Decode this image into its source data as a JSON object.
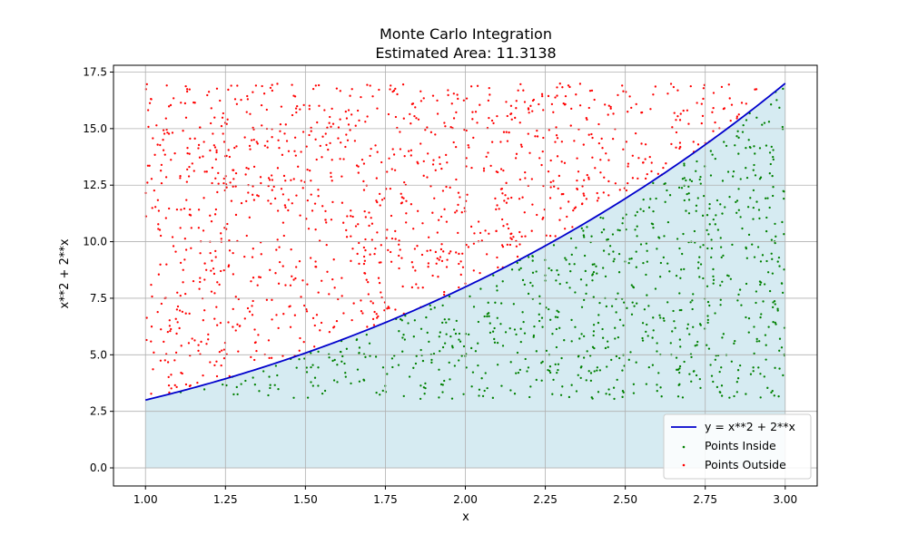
{
  "chart_data": {
    "type": "scatter",
    "title": "Monte Carlo Integration",
    "subtitle": "Estimated Area: 11.3138",
    "xlabel": "x",
    "ylabel": "x**2 + 2**x",
    "xlim": [
      0.9,
      3.1
    ],
    "ylim": [
      -0.8,
      17.8
    ],
    "x_ticks": [
      1.0,
      1.25,
      1.5,
      1.75,
      2.0,
      2.25,
      2.5,
      2.75,
      3.0
    ],
    "x_tick_labels": [
      "1.00",
      "1.25",
      "1.50",
      "1.75",
      "2.00",
      "2.25",
      "2.50",
      "2.75",
      "3.00"
    ],
    "y_ticks": [
      0.0,
      2.5,
      5.0,
      7.5,
      10.0,
      12.5,
      15.0,
      17.5
    ],
    "y_tick_labels": [
      "0.0",
      "2.5",
      "5.0",
      "7.5",
      "10.0",
      "12.5",
      "15.0",
      "17.5"
    ],
    "grid": true,
    "legend_position": "bottom-right",
    "sampling": {
      "x_range": [
        1.0,
        3.0
      ],
      "y_range": [
        3.0,
        17.0
      ],
      "num_points": 2000,
      "seed": 42
    },
    "series": [
      {
        "name": "y = x**2 + 2**x",
        "kind": "line",
        "function": "x**2 + 2**x",
        "color": "#0000cc"
      },
      {
        "name": "Points Inside",
        "kind": "scatter",
        "color": "#008000"
      },
      {
        "name": "Points Outside",
        "kind": "scatter",
        "color": "#ff0000"
      }
    ],
    "fill": {
      "under": "y = x**2 + 2**x",
      "from": 0,
      "color": "#add8e6",
      "opacity": 0.5
    }
  }
}
